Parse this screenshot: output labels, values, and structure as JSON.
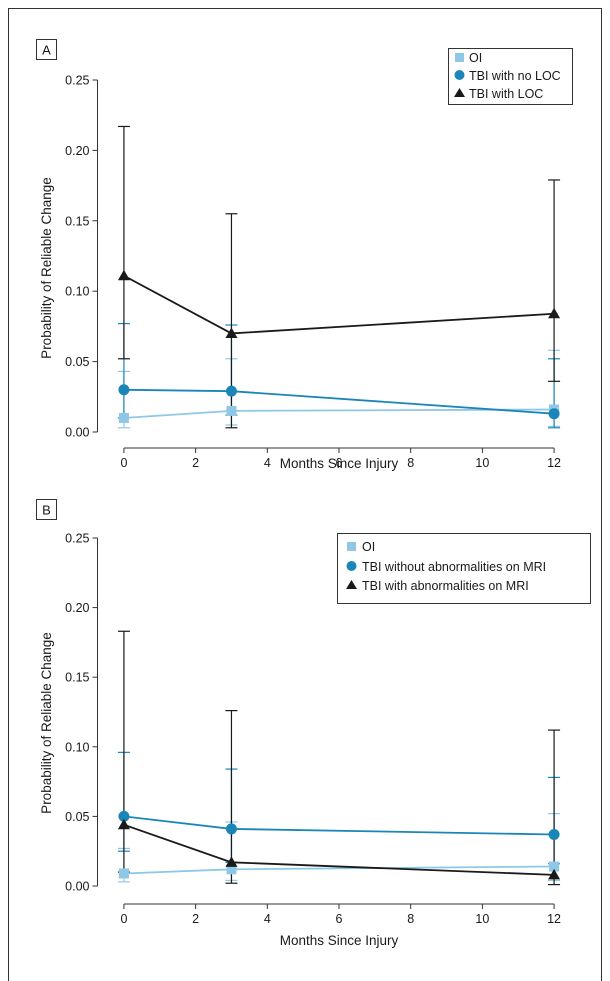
{
  "colors": {
    "oi": "#8fc8e6",
    "tbi_mid": "#1a86b8",
    "tbi_dark": "#1a1a1a"
  },
  "chart_data": [
    {
      "type": "line",
      "panel_label": "A",
      "xlabel": "Months Since Injury",
      "ylabel": "Probability of Reliable Change",
      "xlim": [
        -0.5,
        12.5
      ],
      "ylim": [
        0,
        0.25
      ],
      "x_ticks": [
        0,
        2,
        4,
        6,
        8,
        10,
        12
      ],
      "y_ticks": [
        "0.00",
        "0.05",
        "0.10",
        "0.15",
        "0.20",
        "0.25"
      ],
      "legend_position": "top-right",
      "series": [
        {
          "name": "OI",
          "marker": "square",
          "color": "#8fc8e6",
          "x": [
            0,
            3,
            12
          ],
          "y": [
            0.01,
            0.015,
            0.016
          ],
          "err_low": [
            0.003,
            0.005,
            0.004
          ],
          "err_high": [
            0.043,
            0.052,
            0.058
          ]
        },
        {
          "name": "TBI with no LOC",
          "marker": "circle",
          "color": "#1a86b8",
          "x": [
            0,
            3,
            12
          ],
          "y": [
            0.03,
            0.029,
            0.013
          ],
          "err_low": [
            0.01,
            0.012,
            0.003
          ],
          "err_high": [
            0.077,
            0.076,
            0.052
          ]
        },
        {
          "name": "TBI with LOC",
          "marker": "triangle",
          "color": "#1a1a1a",
          "x": [
            0,
            3,
            12
          ],
          "y": [
            0.111,
            0.07,
            0.084
          ],
          "err_low": [
            0.052,
            0.003,
            0.036
          ],
          "err_high": [
            0.217,
            0.155,
            0.179
          ]
        }
      ]
    },
    {
      "type": "line",
      "panel_label": "B",
      "xlabel": "Months Since Injury",
      "ylabel": "Probability of Reliable Change",
      "xlim": [
        -0.5,
        12.5
      ],
      "ylim": [
        0,
        0.25
      ],
      "x_ticks": [
        0,
        2,
        4,
        6,
        8,
        10,
        12
      ],
      "y_ticks": [
        "0.00",
        "0.05",
        "0.10",
        "0.15",
        "0.20",
        "0.25"
      ],
      "legend_position": "top-right",
      "series": [
        {
          "name": "OI",
          "marker": "square",
          "color": "#8fc8e6",
          "x": [
            0,
            3,
            12
          ],
          "y": [
            0.009,
            0.012,
            0.014
          ],
          "err_low": [
            0.003,
            0.004,
            0.004
          ],
          "err_high": [
            0.027,
            0.046,
            0.052
          ]
        },
        {
          "name": "TBI without abnormalities on MRI",
          "marker": "circle",
          "color": "#1a86b8",
          "x": [
            0,
            3,
            12
          ],
          "y": [
            0.05,
            0.041,
            0.037
          ],
          "err_low": [
            0.025,
            0.017,
            0.016
          ],
          "err_high": [
            0.096,
            0.084,
            0.078
          ]
        },
        {
          "name": "TBI with abnormalities on MRI",
          "marker": "triangle",
          "color": "#1a1a1a",
          "x": [
            0,
            3,
            12
          ],
          "y": [
            0.044,
            0.017,
            0.008
          ],
          "err_low": [
            0.01,
            0.002,
            0.001
          ],
          "err_high": [
            0.183,
            0.126,
            0.112
          ]
        }
      ]
    }
  ]
}
